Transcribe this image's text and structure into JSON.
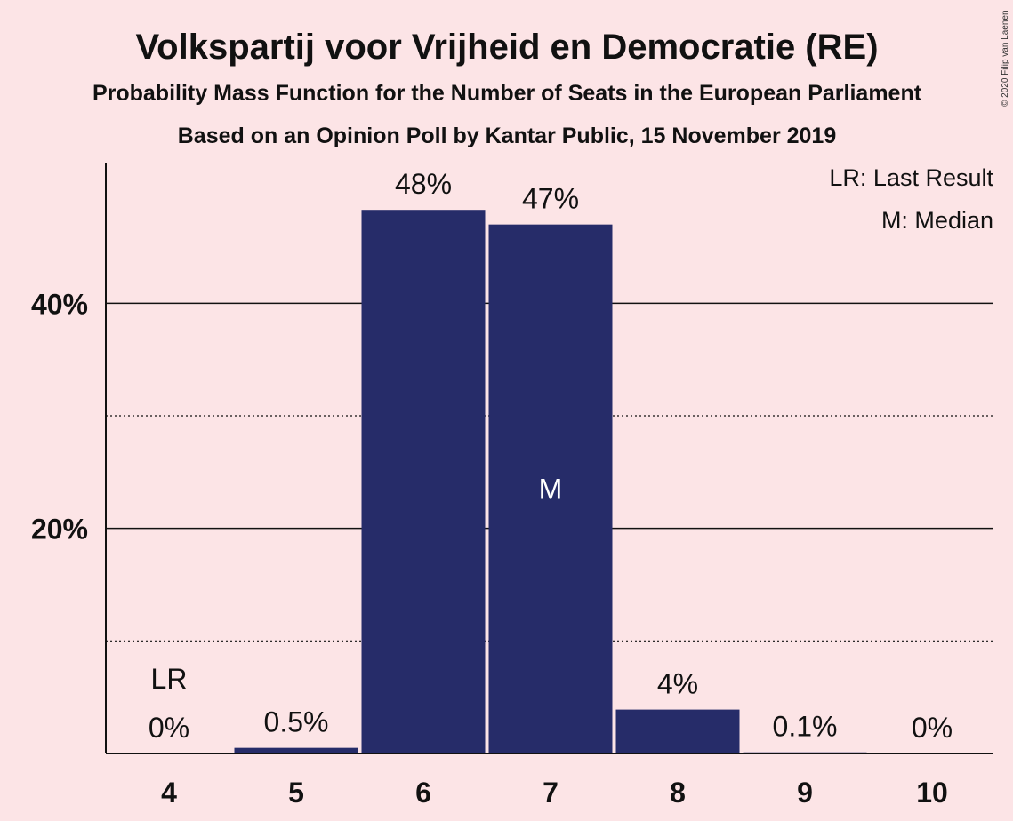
{
  "title": "Volkspartij voor Vrijheid en Democratie (RE)",
  "subtitle": "Probability Mass Function for the Number of Seats in the European Parliament",
  "subtitle2": "Based on an Opinion Poll by Kantar Public, 15 November 2019",
  "copyright": "© 2020 Filip van Laenen",
  "legend": {
    "last_result": "LR: Last Result",
    "median": "M: Median"
  },
  "colors": {
    "background": "#fce4e6",
    "bar": "#262c69",
    "axis": "#111111"
  },
  "chart_data": {
    "type": "bar",
    "categories": [
      "4",
      "5",
      "6",
      "7",
      "8",
      "9",
      "10"
    ],
    "values": [
      0,
      0.5,
      48.3,
      47.0,
      3.9,
      0.1,
      0
    ],
    "data_labels": [
      "0%",
      "0.5%",
      "48%",
      "47%",
      "4%",
      "0.1%",
      "0%"
    ],
    "ylim": [
      0,
      52.5
    ],
    "y_major_ticks": [
      20,
      40
    ],
    "y_major_labels": [
      "20%",
      "40%"
    ],
    "y_minor_ticks": [
      10,
      30
    ],
    "last_result_category": "4",
    "last_result_label": "LR",
    "median_category": "7",
    "median_label": "M",
    "grid": true,
    "legend_position": "top-right"
  }
}
